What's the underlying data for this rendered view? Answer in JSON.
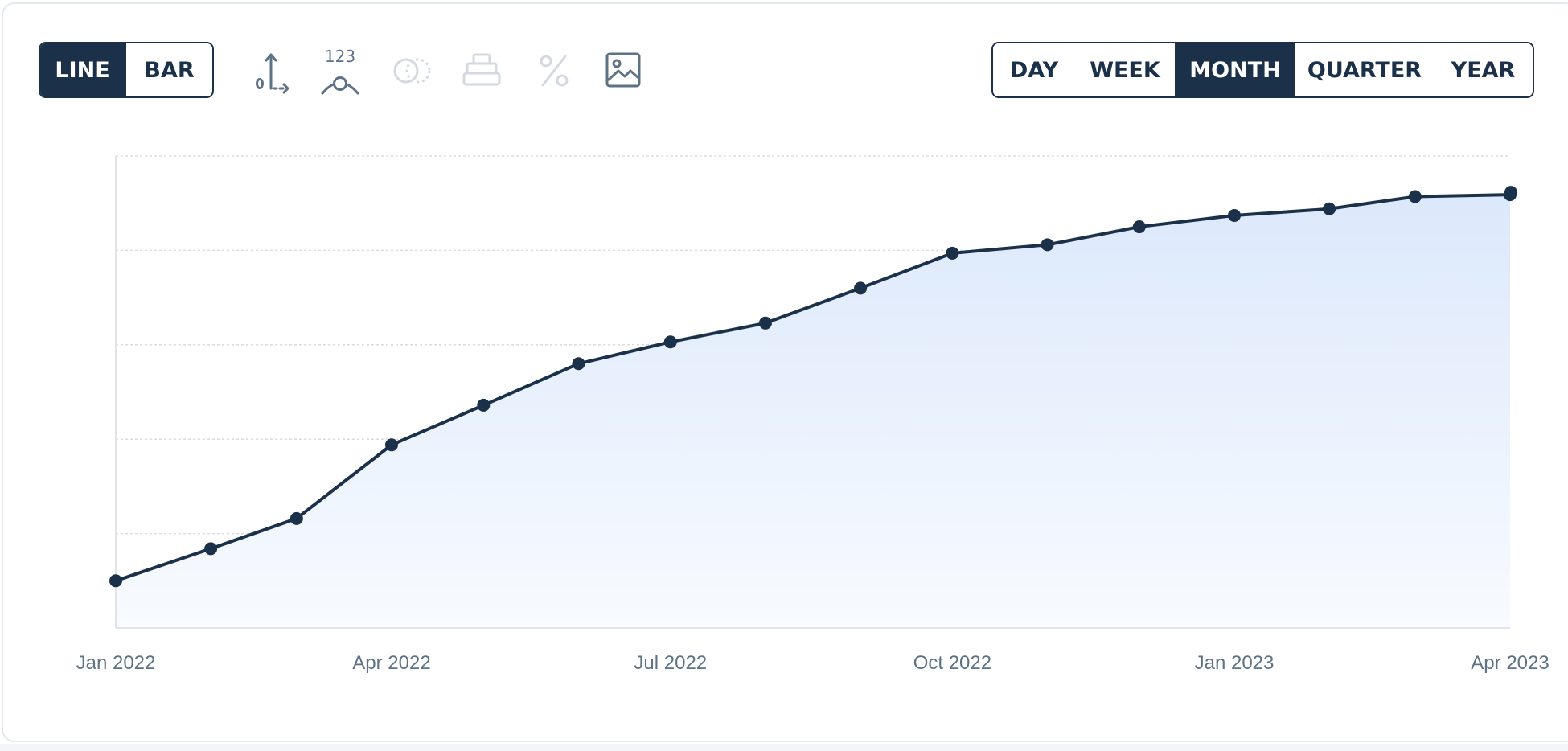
{
  "toolbar": {
    "chart_type": {
      "options": [
        {
          "label": "LINE",
          "active": true
        },
        {
          "label": "BAR",
          "active": false
        }
      ]
    },
    "tools": [
      {
        "icon": "axis-icon",
        "enabled": true
      },
      {
        "icon": "data-labels-icon",
        "label": "123",
        "enabled": true
      },
      {
        "icon": "compare-icon",
        "enabled": false
      },
      {
        "icon": "stack-icon",
        "enabled": false
      },
      {
        "icon": "percent-icon",
        "enabled": false
      },
      {
        "icon": "image-icon",
        "enabled": true
      }
    ],
    "period": {
      "options": [
        {
          "label": "DAY",
          "active": false
        },
        {
          "label": "WEEK",
          "active": false
        },
        {
          "label": "MONTH",
          "active": true
        },
        {
          "label": "QUARTER",
          "active": false
        },
        {
          "label": "YEAR",
          "active": false
        }
      ]
    }
  },
  "colors": {
    "accent": "#1b3049",
    "area_top": "#dce8fb",
    "area_bottom": "#f8fbff",
    "grid": "#d9dde2",
    "tick_text": "#5e7286",
    "disabled_icon": "#d3d9df"
  },
  "chart_data": {
    "type": "area",
    "x": [
      "2022-01-01",
      "2022-02-01",
      "2022-03-01",
      "2022-04-01",
      "2022-05-01",
      "2022-06-01",
      "2022-07-01",
      "2022-08-01",
      "2022-09-01",
      "2022-10-01",
      "2022-11-01",
      "2022-12-01",
      "2023-01-01",
      "2023-02-01",
      "2023-03-01",
      "2023-04-01"
    ],
    "values": [
      0.5,
      0.84,
      1.16,
      1.94,
      2.36,
      2.8,
      3.03,
      3.23,
      3.6,
      3.97,
      4.06,
      4.25,
      4.37,
      4.44,
      4.57,
      4.59
    ],
    "x_ticks": [
      "Jan 2022",
      "Apr 2022",
      "Jul 2022",
      "Oct 2022",
      "Jan 2023",
      "Apr 2023"
    ],
    "x_tick_dates": [
      "2022-01-01",
      "2022-04-01",
      "2022-07-01",
      "2022-10-01",
      "2023-01-01",
      "2023-04-01"
    ],
    "xlim": [
      "2022-01-01",
      "2023-04-01"
    ],
    "ylim": [
      0,
      5
    ],
    "y_grid_lines": [
      1,
      2,
      3,
      4,
      5
    ],
    "y_tick_labels_shown": false,
    "grid": true,
    "markers": true,
    "title": "",
    "xlabel": "",
    "ylabel": ""
  }
}
